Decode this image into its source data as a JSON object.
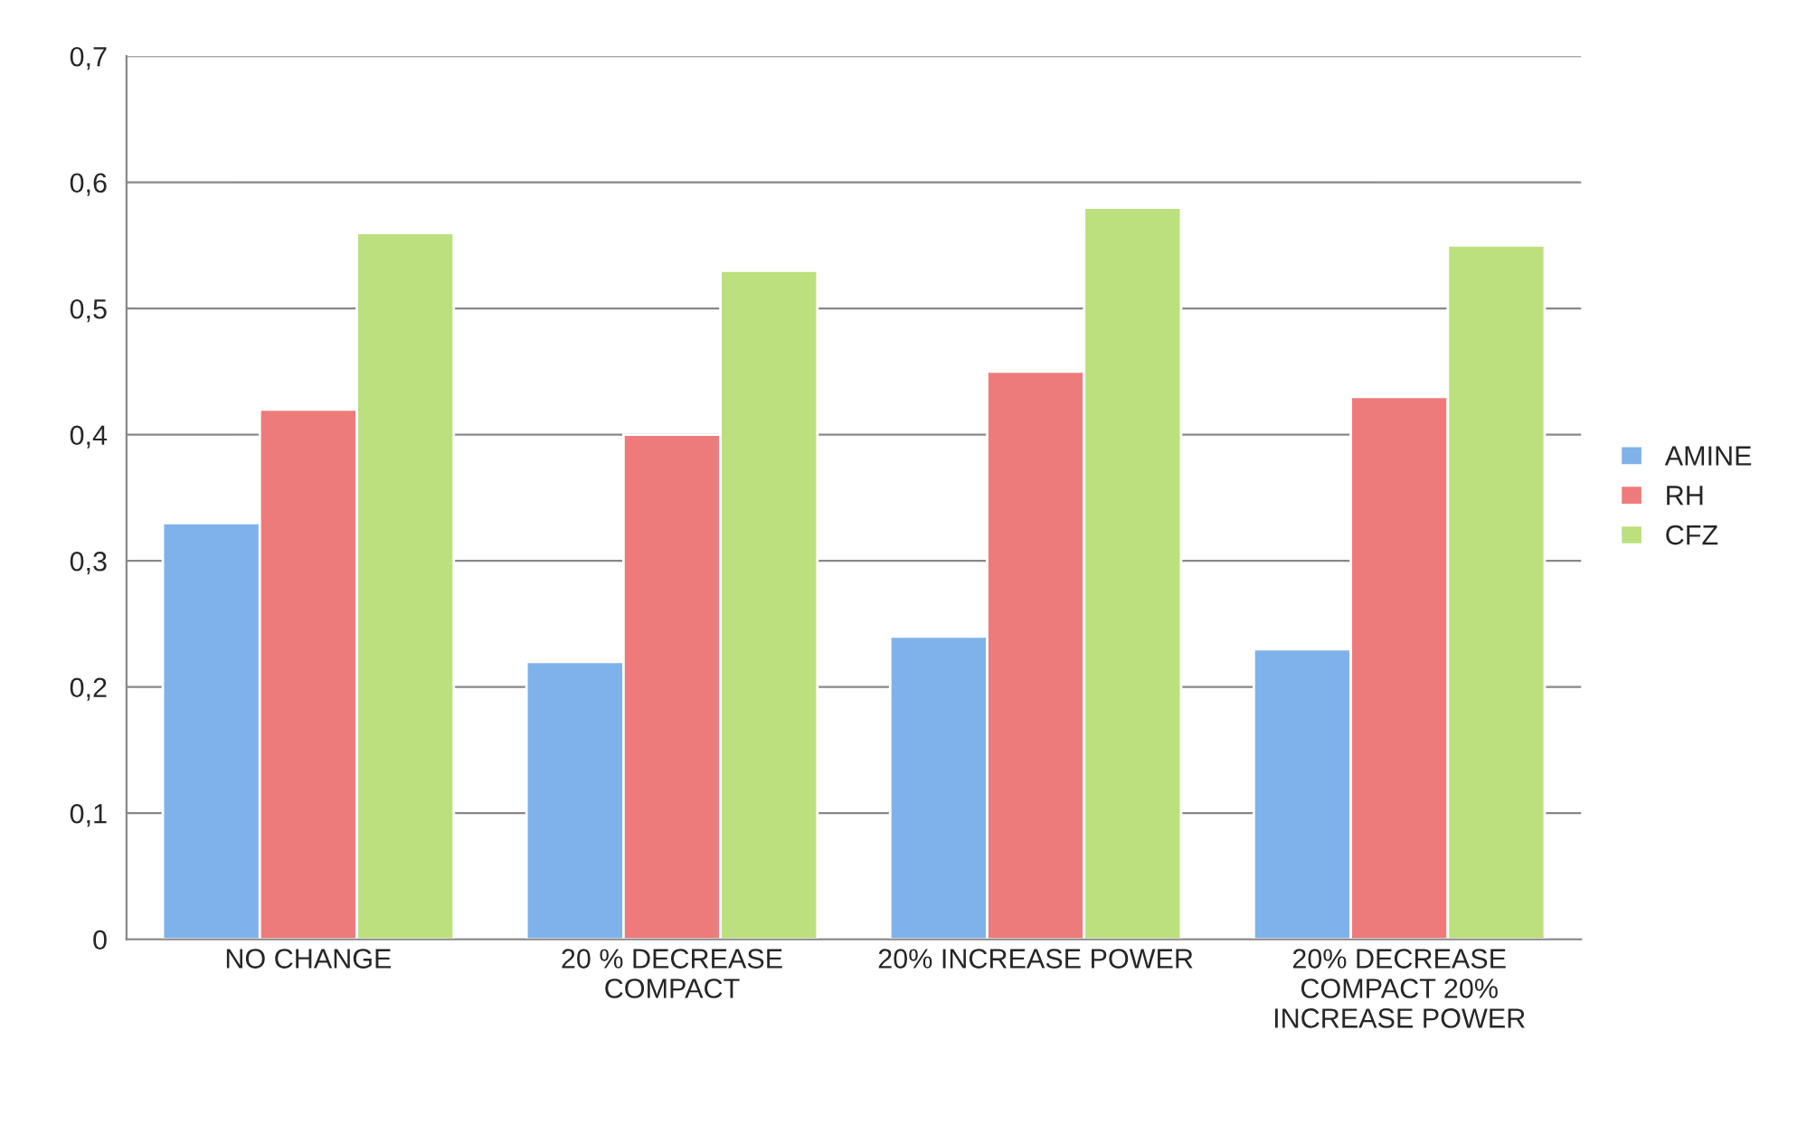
{
  "chart_data": {
    "type": "bar",
    "categories": [
      "NO CHANGE",
      "20 % DECREASE\nCOMPACT",
      "20% INCREASE POWER",
      "20% DECREASE\nCOMPACT 20%\nINCREASE POWER"
    ],
    "series": [
      {
        "name": "AMINE",
        "color": "#7fb2ea",
        "values": [
          0.33,
          0.22,
          0.24,
          0.23
        ]
      },
      {
        "name": "RH",
        "color": "#ee7b7b",
        "values": [
          0.42,
          0.4,
          0.45,
          0.43
        ]
      },
      {
        "name": "CFZ",
        "color": "#bde07e",
        "values": [
          0.56,
          0.53,
          0.58,
          0.55
        ]
      }
    ],
    "ylim": [
      0,
      0.7
    ],
    "yticks": [
      0,
      {
        "value": 0.1,
        "label": "0,1"
      },
      {
        "value": 0.2,
        "label": "0,2"
      },
      {
        "value": 0.3,
        "label": "0,3"
      },
      {
        "value": 0.4,
        "label": "0,4"
      },
      {
        "value": 0.5,
        "label": "0,5"
      },
      {
        "value": 0.6,
        "label": "0,6"
      },
      {
        "value": 0.7,
        "label": "0,7"
      }
    ],
    "grid": "y",
    "legend": "right"
  }
}
